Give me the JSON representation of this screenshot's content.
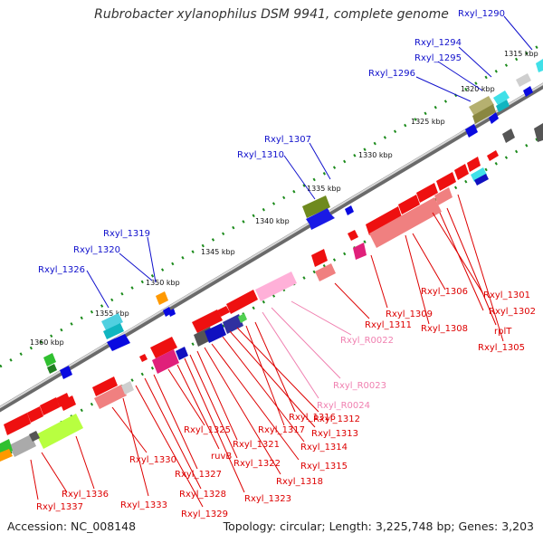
{
  "title": "Rubrobacter xylanophilus DSM 9941, complete genome",
  "accession": "Accession: NC_008148",
  "info": "Topology: circular; Length: 3,225,748 bp; Genes: 3,203",
  "colors": {
    "forward_label": "#1010cc",
    "reverse_label": "#dd0000",
    "rna_label": "#f080b0",
    "backbone": "#888888",
    "tick": "#1a8a1a"
  },
  "ticks": [
    "1315 kbp",
    "1320 kbp",
    "1325 kbp",
    "1330 kbp",
    "1335 kbp",
    "1340 kbp",
    "1345 kbp",
    "1350 kbp",
    "1355 kbp",
    "1360 kbp"
  ],
  "forward_labels": [
    "Rxyl_1290",
    "Rxyl_1294",
    "Rxyl_1295",
    "Rxyl_1296",
    "Rxyl_1307",
    "Rxyl_1310",
    "Rxyl_1319",
    "Rxyl_1320",
    "Rxyl_1326"
  ],
  "reverse_labels": [
    "Rxyl_1301",
    "Rxyl_1302",
    "rplT",
    "Rxyl_1305",
    "Rxyl_1306",
    "Rxyl_1308",
    "Rxyl_1309",
    "Rxyl_1311",
    "Rxyl_1312",
    "Rxyl_1313",
    "Rxyl_1314",
    "Rxyl_1315",
    "Rxyl_1316",
    "Rxyl_1317",
    "Rxyl_1318",
    "Rxyl_1321",
    "Rxyl_1322",
    "Rxyl_1323",
    "ruvB",
    "Rxyl_1325",
    "Rxyl_1327",
    "Rxyl_1328",
    "Rxyl_1329",
    "Rxyl_1330",
    "Rxyl_1333",
    "Rxyl_1336",
    "Rxyl_1337"
  ],
  "rna_labels": [
    "Rxyl_R0022",
    "Rxyl_R0023",
    "Rxyl_R0024"
  ]
}
